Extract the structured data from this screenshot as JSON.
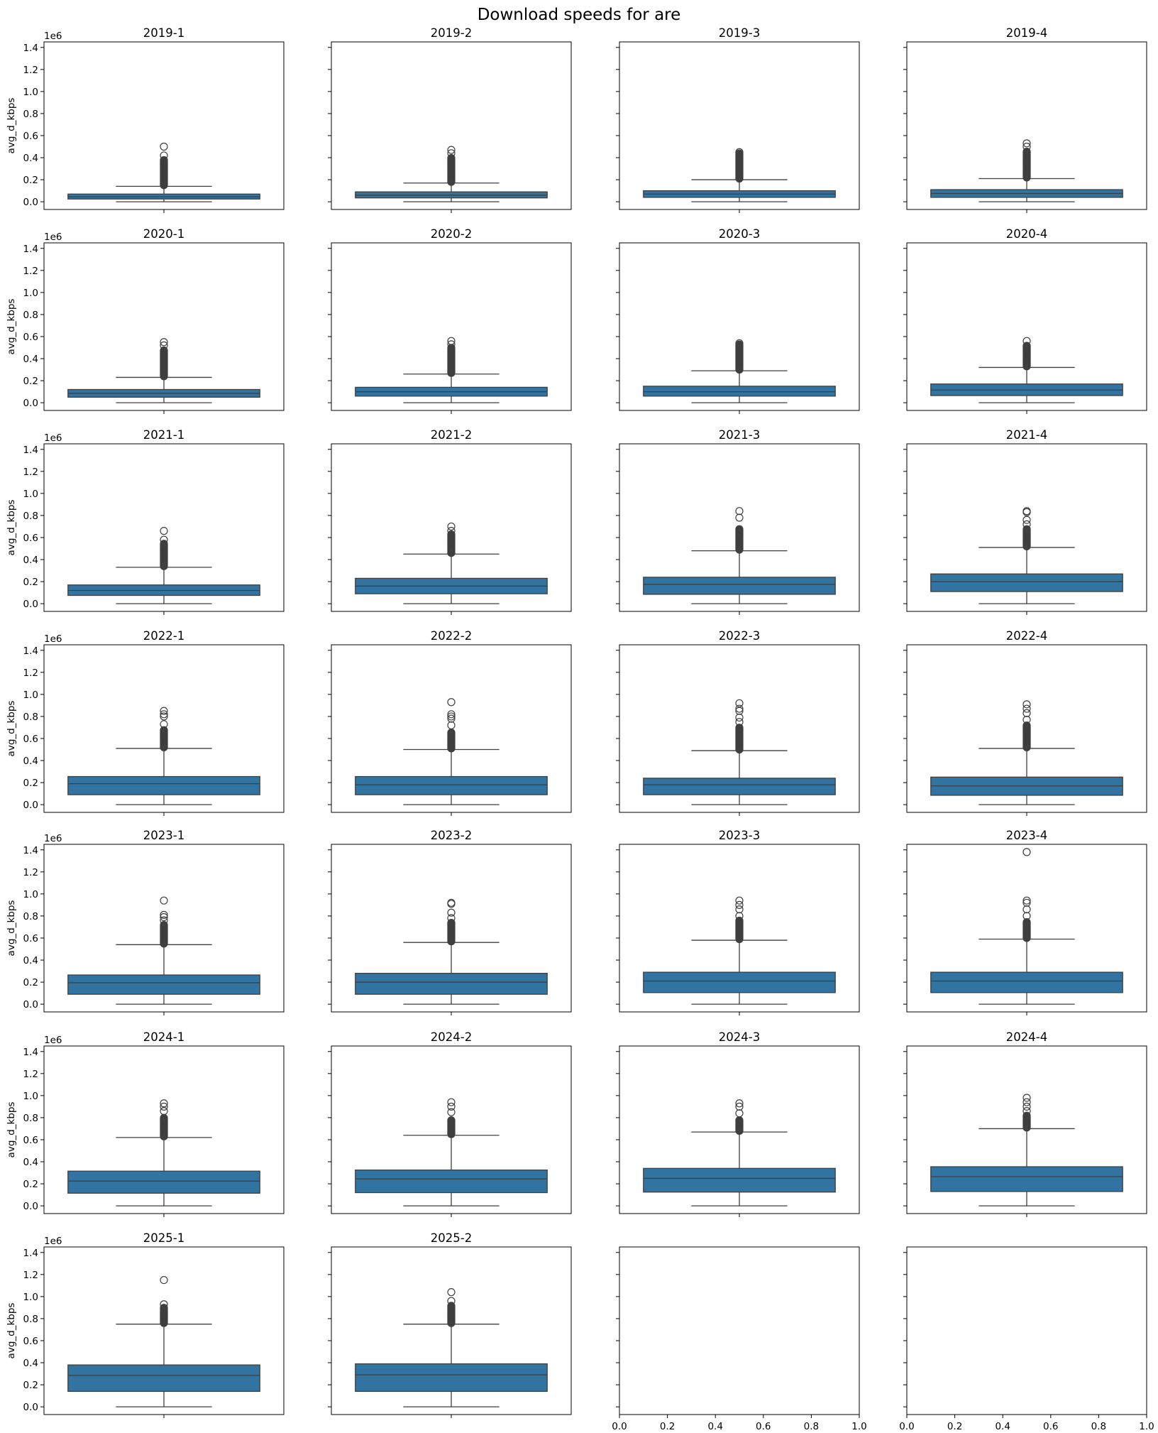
{
  "chart_data": {
    "type": "boxplot",
    "title": "Download speeds for are",
    "ylabel": "avg_d_kbps",
    "y_offset_label": "1e6",
    "ylim": [
      -0.07,
      1.45
    ],
    "yticks": [
      "0.0",
      "0.2",
      "0.4",
      "0.6",
      "0.8",
      "1.0",
      "1.2",
      "1.4"
    ],
    "empty_xticks": [
      "0.0",
      "0.2",
      "0.4",
      "0.6",
      "0.8",
      "1.0"
    ],
    "grid": false,
    "layout": {
      "rows": 7,
      "cols": 4
    },
    "colors": {
      "box": "#3274a1",
      "line": "#3f3f3f"
    },
    "units_note_shown": "values in units of 1e6",
    "panels": [
      {
        "title": "2019-1",
        "whislo": 0,
        "q1": 0.025,
        "med": 0.045,
        "q3": 0.07,
        "whishi": 0.14,
        "outlier_dense_to": 0.38,
        "outliers_extra": [
          0.42,
          0.5
        ]
      },
      {
        "title": "2019-2",
        "whislo": 0,
        "q1": 0.035,
        "med": 0.06,
        "q3": 0.09,
        "whishi": 0.17,
        "outlier_dense_to": 0.4,
        "outliers_extra": [
          0.44,
          0.47
        ]
      },
      {
        "title": "2019-3",
        "whislo": 0,
        "q1": 0.04,
        "med": 0.07,
        "q3": 0.1,
        "whishi": 0.2,
        "outlier_dense_to": 0.44,
        "outliers_extra": [
          0.45
        ]
      },
      {
        "title": "2019-4",
        "whislo": 0,
        "q1": 0.04,
        "med": 0.075,
        "q3": 0.11,
        "whishi": 0.21,
        "outlier_dense_to": 0.46,
        "outliers_extra": [
          0.5,
          0.53
        ]
      },
      {
        "title": "2020-1",
        "whislo": 0,
        "q1": 0.05,
        "med": 0.085,
        "q3": 0.12,
        "whishi": 0.23,
        "outlier_dense_to": 0.48,
        "outliers_extra": [
          0.52,
          0.55
        ]
      },
      {
        "title": "2020-2",
        "whislo": 0,
        "q1": 0.06,
        "med": 0.1,
        "q3": 0.14,
        "whishi": 0.26,
        "outlier_dense_to": 0.5,
        "outliers_extra": [
          0.53,
          0.56
        ]
      },
      {
        "title": "2020-3",
        "whislo": 0,
        "q1": 0.06,
        "med": 0.1,
        "q3": 0.15,
        "whishi": 0.29,
        "outlier_dense_to": 0.53,
        "outliers_extra": [
          0.54
        ]
      },
      {
        "title": "2020-4",
        "whislo": 0,
        "q1": 0.065,
        "med": 0.115,
        "q3": 0.17,
        "whishi": 0.32,
        "outlier_dense_to": 0.52,
        "outliers_extra": [
          0.56
        ]
      },
      {
        "title": "2021-1",
        "whislo": 0,
        "q1": 0.075,
        "med": 0.12,
        "q3": 0.17,
        "whishi": 0.33,
        "outlier_dense_to": 0.55,
        "outliers_extra": [
          0.58,
          0.66
        ]
      },
      {
        "title": "2021-2",
        "whislo": 0,
        "q1": 0.09,
        "med": 0.16,
        "q3": 0.23,
        "whishi": 0.45,
        "outlier_dense_to": 0.63,
        "outliers_extra": [
          0.66,
          0.7
        ]
      },
      {
        "title": "2021-3",
        "whislo": 0,
        "q1": 0.085,
        "med": 0.175,
        "q3": 0.24,
        "whishi": 0.48,
        "outlier_dense_to": 0.68,
        "outliers_extra": [
          0.78,
          0.84
        ]
      },
      {
        "title": "2021-4",
        "whislo": 0,
        "q1": 0.11,
        "med": 0.2,
        "q3": 0.27,
        "whishi": 0.51,
        "outlier_dense_to": 0.68,
        "outliers_extra": [
          0.72,
          0.76,
          0.83,
          0.84
        ]
      },
      {
        "title": "2022-1",
        "whislo": 0,
        "q1": 0.09,
        "med": 0.19,
        "q3": 0.255,
        "whishi": 0.51,
        "outlier_dense_to": 0.68,
        "outliers_extra": [
          0.73,
          0.8,
          0.82,
          0.85
        ]
      },
      {
        "title": "2022-2",
        "whislo": 0,
        "q1": 0.09,
        "med": 0.18,
        "q3": 0.255,
        "whishi": 0.5,
        "outlier_dense_to": 0.66,
        "outliers_extra": [
          0.72,
          0.78,
          0.8,
          0.82,
          0.93
        ]
      },
      {
        "title": "2022-3",
        "whislo": 0,
        "q1": 0.09,
        "med": 0.18,
        "q3": 0.24,
        "whishi": 0.49,
        "outlier_dense_to": 0.7,
        "outliers_extra": [
          0.75,
          0.79,
          0.85,
          0.87,
          0.92
        ]
      },
      {
        "title": "2022-4",
        "whislo": 0,
        "q1": 0.085,
        "med": 0.17,
        "q3": 0.25,
        "whishi": 0.51,
        "outlier_dense_to": 0.72,
        "outliers_extra": [
          0.77,
          0.83,
          0.87,
          0.91
        ]
      },
      {
        "title": "2023-1",
        "whislo": 0,
        "q1": 0.09,
        "med": 0.195,
        "q3": 0.265,
        "whishi": 0.54,
        "outlier_dense_to": 0.72,
        "outliers_extra": [
          0.76,
          0.79,
          0.81,
          0.94
        ]
      },
      {
        "title": "2023-2",
        "whislo": 0,
        "q1": 0.09,
        "med": 0.2,
        "q3": 0.28,
        "whishi": 0.56,
        "outlier_dense_to": 0.74,
        "outliers_extra": [
          0.78,
          0.83,
          0.91,
          0.92
        ]
      },
      {
        "title": "2023-3",
        "whislo": 0,
        "q1": 0.105,
        "med": 0.21,
        "q3": 0.29,
        "whishi": 0.58,
        "outlier_dense_to": 0.76,
        "outliers_extra": [
          0.8,
          0.86,
          0.9,
          0.94
        ]
      },
      {
        "title": "2023-4",
        "whislo": 0,
        "q1": 0.105,
        "med": 0.21,
        "q3": 0.29,
        "whishi": 0.59,
        "outlier_dense_to": 0.75,
        "outliers_extra": [
          0.8,
          0.86,
          0.92,
          0.94,
          1.38
        ]
      },
      {
        "title": "2024-1",
        "whislo": 0,
        "q1": 0.115,
        "med": 0.225,
        "q3": 0.315,
        "whishi": 0.62,
        "outlier_dense_to": 0.8,
        "outliers_extra": [
          0.86,
          0.9,
          0.93
        ]
      },
      {
        "title": "2024-2",
        "whislo": 0,
        "q1": 0.12,
        "med": 0.245,
        "q3": 0.325,
        "whishi": 0.64,
        "outlier_dense_to": 0.78,
        "outliers_extra": [
          0.85,
          0.9,
          0.94
        ]
      },
      {
        "title": "2024-3",
        "whislo": 0,
        "q1": 0.125,
        "med": 0.25,
        "q3": 0.34,
        "whishi": 0.67,
        "outlier_dense_to": 0.78,
        "outliers_extra": [
          0.84,
          0.9,
          0.93
        ]
      },
      {
        "title": "2024-4",
        "whislo": 0,
        "q1": 0.13,
        "med": 0.265,
        "q3": 0.355,
        "whishi": 0.7,
        "outlier_dense_to": 0.82,
        "outliers_extra": [
          0.86,
          0.9,
          0.94,
          0.98
        ]
      },
      {
        "title": "2025-1",
        "whislo": 0,
        "q1": 0.14,
        "med": 0.285,
        "q3": 0.38,
        "whishi": 0.75,
        "outlier_dense_to": 0.9,
        "outliers_extra": [
          0.93,
          1.15
        ]
      },
      {
        "title": "2025-2",
        "whislo": 0,
        "q1": 0.14,
        "med": 0.29,
        "q3": 0.39,
        "whishi": 0.75,
        "outlier_dense_to": 0.92,
        "outliers_extra": [
          0.96,
          1.04
        ]
      },
      {
        "title": "",
        "empty": true
      },
      {
        "title": "",
        "empty": true
      }
    ]
  }
}
